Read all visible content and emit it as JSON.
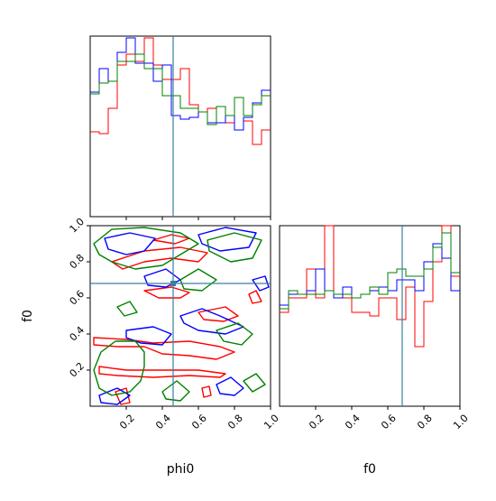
{
  "figure": {
    "type": "corner-plot",
    "parameters": [
      "phi0",
      "f0"
    ],
    "series_colors": [
      "#ff0000",
      "#0000ff",
      "#008000"
    ],
    "truth_color": "#3a7ea1"
  },
  "chart_data": [
    {
      "panel": "phi0-histogram",
      "type": "step-histogram",
      "xlim": [
        0,
        1
      ],
      "x_tick_labels": [],
      "y_tick_labels": [],
      "bin_edges": [
        0,
        0.05,
        0.1,
        0.15,
        0.2,
        0.25,
        0.3,
        0.35,
        0.4,
        0.45,
        0.5,
        0.55,
        0.6,
        0.65,
        0.7,
        0.75,
        0.8,
        0.85,
        0.9,
        0.95,
        1.0
      ],
      "series": [
        {
          "color": "#ff0000",
          "values": [
            0.47,
            0.46,
            0.6,
            0.84,
            0.9,
            0.86,
            0.99,
            0.84,
            0.76,
            0.76,
            0.82,
            0.62,
            0.58,
            0.6,
            0.52,
            0.52,
            0.48,
            0.53,
            0.4,
            0.48
          ]
        },
        {
          "color": "#0000ff",
          "values": [
            0.69,
            0.82,
            0.75,
            0.91,
            0.99,
            0.85,
            0.85,
            0.75,
            0.84,
            0.56,
            0.54,
            0.55,
            0.58,
            0.52,
            0.52,
            0.56,
            0.48,
            0.55,
            0.63,
            0.7
          ]
        },
        {
          "color": "#008000",
          "values": [
            0.68,
            0.74,
            0.75,
            0.86,
            0.86,
            0.9,
            0.82,
            0.82,
            0.67,
            0.67,
            0.6,
            0.6,
            0.58,
            0.51,
            0.61,
            0.56,
            0.66,
            0.56,
            0.62,
            0.67
          ]
        }
      ],
      "truth": {
        "x": 0.46
      }
    },
    {
      "panel": "phi0-vs-f0-contours",
      "type": "contour",
      "xlim": [
        0,
        1
      ],
      "ylim": [
        0,
        1
      ],
      "x_tick_labels": [],
      "y_tick_labels": [
        "0.2",
        "0.4",
        "0.6",
        "0.8",
        "1.0"
      ],
      "y_ticks": [
        0.2,
        0.4,
        0.6,
        0.8,
        1.0
      ],
      "ylabel": "f0",
      "truth": {
        "x": 0.46,
        "y": 0.68
      },
      "series": [
        {
          "color": "#ff0000",
          "contours": [
            [
              [
                0.02,
                0.38
              ],
              [
                0.2,
                0.37
              ],
              [
                0.35,
                0.35
              ],
              [
                0.55,
                0.36
              ],
              [
                0.72,
                0.33
              ],
              [
                0.8,
                0.3
              ],
              [
                0.7,
                0.26
              ],
              [
                0.55,
                0.28
              ],
              [
                0.4,
                0.29
              ],
              [
                0.3,
                0.33
              ],
              [
                0.15,
                0.33
              ],
              [
                0.02,
                0.34
              ]
            ],
            [
              [
                0.05,
                0.22
              ],
              [
                0.2,
                0.2
              ],
              [
                0.4,
                0.2
              ],
              [
                0.6,
                0.2
              ],
              [
                0.75,
                0.18
              ],
              [
                0.72,
                0.16
              ],
              [
                0.55,
                0.17
              ],
              [
                0.35,
                0.16
              ],
              [
                0.15,
                0.17
              ],
              [
                0.05,
                0.18
              ]
            ],
            [
              [
                0.12,
                0.8
              ],
              [
                0.3,
                0.86
              ],
              [
                0.5,
                0.88
              ],
              [
                0.65,
                0.85
              ],
              [
                0.6,
                0.8
              ],
              [
                0.45,
                0.82
              ],
              [
                0.3,
                0.8
              ],
              [
                0.18,
                0.76
              ]
            ],
            [
              [
                0.3,
                0.64
              ],
              [
                0.45,
                0.66
              ],
              [
                0.55,
                0.63
              ],
              [
                0.5,
                0.6
              ],
              [
                0.38,
                0.6
              ]
            ],
            [
              [
                0.6,
                0.52
              ],
              [
                0.75,
                0.55
              ],
              [
                0.82,
                0.5
              ],
              [
                0.74,
                0.47
              ],
              [
                0.63,
                0.48
              ]
            ],
            [
              [
                0.14,
                0.08
              ],
              [
                0.2,
                0.1
              ],
              [
                0.22,
                0.02
              ],
              [
                0.17,
                0.01
              ]
            ],
            [
              [
                0.62,
                0.1
              ],
              [
                0.66,
                0.11
              ],
              [
                0.67,
                0.06
              ],
              [
                0.63,
                0.05
              ]
            ],
            [
              [
                0.88,
                0.62
              ],
              [
                0.92,
                0.64
              ],
              [
                0.95,
                0.58
              ],
              [
                0.9,
                0.57
              ]
            ],
            [
              [
                0.35,
                0.92
              ],
              [
                0.45,
                0.95
              ],
              [
                0.55,
                0.93
              ],
              [
                0.47,
                0.9
              ]
            ]
          ]
        },
        {
          "color": "#0000ff",
          "contours": [
            [
              [
                0.08,
                0.93
              ],
              [
                0.22,
                0.96
              ],
              [
                0.36,
                0.93
              ],
              [
                0.3,
                0.86
              ],
              [
                0.2,
                0.84
              ],
              [
                0.1,
                0.87
              ]
            ],
            [
              [
                0.6,
                0.95
              ],
              [
                0.75,
                0.99
              ],
              [
                0.92,
                0.96
              ],
              [
                0.88,
                0.88
              ],
              [
                0.72,
                0.86
              ],
              [
                0.62,
                0.9
              ]
            ],
            [
              [
                0.5,
                0.5
              ],
              [
                0.62,
                0.54
              ],
              [
                0.72,
                0.5
              ],
              [
                0.85,
                0.44
              ],
              [
                0.75,
                0.4
              ],
              [
                0.6,
                0.42
              ],
              [
                0.52,
                0.46
              ]
            ],
            [
              [
                0.2,
                0.42
              ],
              [
                0.35,
                0.44
              ],
              [
                0.45,
                0.4
              ],
              [
                0.4,
                0.34
              ],
              [
                0.28,
                0.35
              ],
              [
                0.2,
                0.38
              ]
            ],
            [
              [
                0.05,
                0.06
              ],
              [
                0.15,
                0.1
              ],
              [
                0.22,
                0.06
              ],
              [
                0.15,
                0.01
              ],
              [
                0.06,
                0.02
              ]
            ],
            [
              [
                0.7,
                0.12
              ],
              [
                0.78,
                0.16
              ],
              [
                0.85,
                0.1
              ],
              [
                0.8,
                0.06
              ],
              [
                0.72,
                0.07
              ]
            ],
            [
              [
                0.3,
                0.72
              ],
              [
                0.42,
                0.76
              ],
              [
                0.5,
                0.7
              ],
              [
                0.42,
                0.66
              ],
              [
                0.32,
                0.67
              ]
            ],
            [
              [
                0.9,
                0.7
              ],
              [
                0.97,
                0.72
              ],
              [
                0.99,
                0.66
              ],
              [
                0.94,
                0.64
              ]
            ]
          ]
        },
        {
          "color": "#008000",
          "contours": [
            [
              [
                0.02,
                0.9
              ],
              [
                0.12,
                0.98
              ],
              [
                0.3,
                0.99
              ],
              [
                0.5,
                0.96
              ],
              [
                0.6,
                0.9
              ],
              [
                0.5,
                0.84
              ],
              [
                0.4,
                0.78
              ],
              [
                0.25,
                0.76
              ],
              [
                0.12,
                0.8
              ],
              [
                0.05,
                0.84
              ]
            ],
            [
              [
                0.3,
                0.3
              ],
              [
                0.3,
                0.22
              ],
              [
                0.28,
                0.14
              ],
              [
                0.22,
                0.08
              ],
              [
                0.12,
                0.06
              ],
              [
                0.05,
                0.1
              ],
              [
                0.02,
                0.2
              ],
              [
                0.06,
                0.3
              ],
              [
                0.14,
                0.36
              ],
              [
                0.25,
                0.36
              ]
            ],
            [
              [
                0.65,
                0.92
              ],
              [
                0.8,
                0.96
              ],
              [
                0.95,
                0.92
              ],
              [
                0.9,
                0.82
              ],
              [
                0.78,
                0.8
              ],
              [
                0.66,
                0.86
              ]
            ],
            [
              [
                0.5,
                0.7
              ],
              [
                0.6,
                0.76
              ],
              [
                0.7,
                0.7
              ],
              [
                0.62,
                0.64
              ],
              [
                0.52,
                0.65
              ]
            ],
            [
              [
                0.7,
                0.42
              ],
              [
                0.82,
                0.46
              ],
              [
                0.9,
                0.4
              ],
              [
                0.84,
                0.34
              ],
              [
                0.74,
                0.36
              ]
            ],
            [
              [
                0.4,
                0.08
              ],
              [
                0.48,
                0.14
              ],
              [
                0.55,
                0.08
              ],
              [
                0.5,
                0.03
              ],
              [
                0.42,
                0.04
              ]
            ],
            [
              [
                0.85,
                0.14
              ],
              [
                0.92,
                0.18
              ],
              [
                0.97,
                0.12
              ],
              [
                0.9,
                0.08
              ]
            ],
            [
              [
                0.15,
                0.55
              ],
              [
                0.22,
                0.58
              ],
              [
                0.26,
                0.52
              ],
              [
                0.19,
                0.5
              ]
            ]
          ]
        }
      ]
    },
    {
      "panel": "f0-histogram",
      "type": "step-histogram",
      "xlim": [
        0,
        1
      ],
      "x_tick_labels": [
        "0.2",
        "0.4",
        "0.6",
        "0.8",
        "1.0"
      ],
      "x_ticks": [
        0.2,
        0.4,
        0.6,
        0.8,
        1.0
      ],
      "xlabel": "f0",
      "y_tick_labels": [],
      "bin_edges": [
        0,
        0.05,
        0.1,
        0.15,
        0.2,
        0.25,
        0.3,
        0.35,
        0.4,
        0.45,
        0.5,
        0.55,
        0.6,
        0.65,
        0.7,
        0.75,
        0.8,
        0.85,
        0.9,
        0.95,
        1.0
      ],
      "series": [
        {
          "color": "#ff0000",
          "values": [
            0.52,
            0.6,
            0.6,
            0.76,
            0.6,
            1.0,
            0.6,
            0.6,
            0.52,
            0.52,
            0.5,
            0.6,
            0.6,
            0.48,
            0.66,
            0.33,
            0.58,
            0.8,
            1.0,
            0.72
          ]
        },
        {
          "color": "#0000ff",
          "values": [
            0.56,
            0.62,
            0.62,
            0.64,
            0.76,
            0.64,
            0.6,
            0.66,
            0.6,
            0.62,
            0.64,
            0.66,
            0.64,
            0.7,
            0.7,
            0.64,
            0.8,
            0.9,
            0.82,
            0.64
          ]
        },
        {
          "color": "#008000",
          "values": [
            0.54,
            0.64,
            0.62,
            0.62,
            0.62,
            0.64,
            0.62,
            0.62,
            0.6,
            0.62,
            0.66,
            0.62,
            0.74,
            0.76,
            0.72,
            0.72,
            0.76,
            0.88,
            0.96,
            0.74
          ]
        }
      ],
      "truth": {
        "x": 0.68
      }
    }
  ],
  "shared_axes": {
    "phi0": {
      "label": "phi0",
      "tick_labels": [
        "0.2",
        "0.4",
        "0.6",
        "0.8",
        "1.0"
      ],
      "ticks": [
        0.2,
        0.4,
        0.6,
        0.8,
        1.0
      ]
    }
  }
}
